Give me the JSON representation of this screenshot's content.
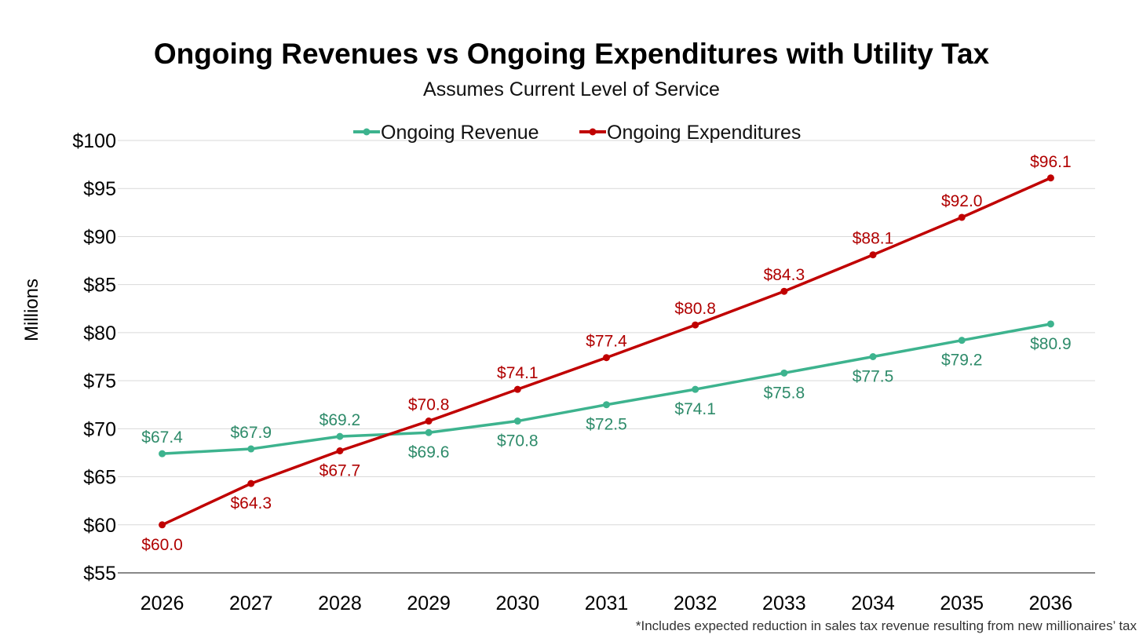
{
  "chart_data": {
    "type": "line",
    "title": "Ongoing Revenues vs Ongoing Expenditures with Utility Tax",
    "subtitle": "Assumes Current Level of Service",
    "ylabel": "Millions",
    "xlabel": "",
    "footnote": "*Includes expected reduction in sales tax revenue resulting from new millionaires’ tax",
    "categories": [
      "2026",
      "2027",
      "2028",
      "2029",
      "2030",
      "2031",
      "2032",
      "2033",
      "2034",
      "2035",
      "2036"
    ],
    "ylim": [
      55,
      100
    ],
    "yticks": [
      55,
      60,
      65,
      70,
      75,
      80,
      85,
      90,
      95,
      100
    ],
    "ytick_labels": [
      "$55",
      "$60",
      "$65",
      "$70",
      "$75",
      "$80",
      "$85",
      "$90",
      "$95",
      "$100"
    ],
    "grid": true,
    "legend_position": "top",
    "series": [
      {
        "name": "Ongoing Revenue",
        "color": "#3db38e",
        "label_color": "#2e8b6a",
        "values": [
          67.4,
          67.9,
          69.2,
          69.6,
          70.8,
          72.5,
          74.1,
          75.8,
          77.5,
          79.2,
          80.9
        ],
        "labels": [
          "$67.4",
          "$67.9",
          "$69.2",
          "$69.6",
          "$70.8",
          "$72.5",
          "$74.1",
          "$75.8",
          "$77.5",
          "$79.2",
          "$80.9"
        ]
      },
      {
        "name": "Ongoing Expenditures",
        "color": "#c00000",
        "label_color": "#b00000",
        "values": [
          60.0,
          64.3,
          67.7,
          70.8,
          74.1,
          77.4,
          80.8,
          84.3,
          88.1,
          92.0,
          96.1
        ],
        "labels": [
          "$60.0",
          "$64.3",
          "$67.7",
          "$70.8",
          "$74.1",
          "$77.4",
          "$80.8",
          "$84.3",
          "$88.1",
          "$92.0",
          "$96.1"
        ]
      }
    ]
  }
}
